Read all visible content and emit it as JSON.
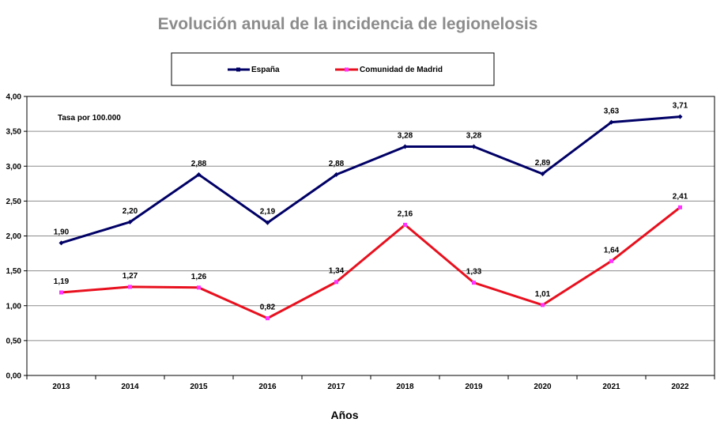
{
  "chart_data": {
    "type": "line",
    "title": "Evolución anual de la incidencia de legionelosis",
    "xlabel": "Años",
    "ylabel": "",
    "annotation": "Tasa por 100.000",
    "categories": [
      "2013",
      "2014",
      "2015",
      "2016",
      "2017",
      "2018",
      "2019",
      "2020",
      "2021",
      "2022"
    ],
    "ylim": [
      0,
      4
    ],
    "yticks": [
      0,
      0.5,
      1,
      1.5,
      2,
      2.5,
      3,
      3.5,
      4
    ],
    "ytick_labels": [
      "0,00",
      "0,50",
      "1,00",
      "1,50",
      "2,00",
      "2,50",
      "3,00",
      "3,50",
      "4,00"
    ],
    "grid": true,
    "legend_position": "top",
    "series": [
      {
        "name": "España",
        "color": "#000066",
        "marker_color": "#000066",
        "values": [
          1.9,
          2.2,
          2.88,
          2.19,
          2.88,
          3.28,
          3.28,
          2.89,
          3.63,
          3.71
        ],
        "labels": [
          "1,90",
          "2,20",
          "2,88",
          "2,19",
          "2,88",
          "3,28",
          "3,28",
          "2,89",
          "3,63",
          "3,71"
        ]
      },
      {
        "name": "Comunidad de Madrid",
        "color": "#e8101e",
        "marker_color": "#ff33ff",
        "values": [
          1.19,
          1.27,
          1.26,
          0.82,
          1.34,
          2.16,
          1.33,
          1.01,
          1.64,
          2.41
        ],
        "labels": [
          "1,19",
          "1,27",
          "1,26",
          "0,82",
          "1,34",
          "2,16",
          "1,33",
          "1,01",
          "1,64",
          "2,41"
        ]
      }
    ]
  }
}
